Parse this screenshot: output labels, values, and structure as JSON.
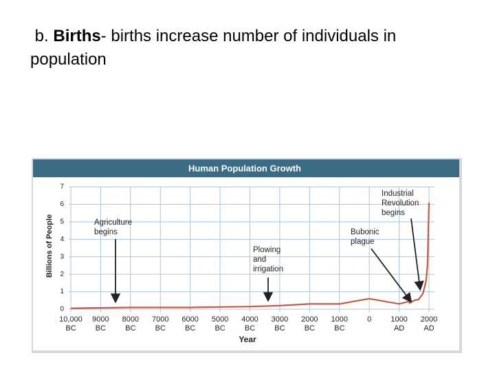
{
  "heading": {
    "prefix": "b.",
    "bold": "Births",
    "rest": "- births increase number of individuals in population"
  },
  "chart_data": {
    "type": "line",
    "title": "Human Population Growth",
    "x_label": "Year",
    "y_label": "Billions of People",
    "x": [
      -10000,
      -8000,
      -6000,
      -4000,
      -3000,
      -2000,
      -1000,
      0,
      1000,
      1340,
      1350,
      1500,
      1650,
      1800,
      1900,
      1950,
      2000
    ],
    "values": [
      0.05,
      0.1,
      0.1,
      0.15,
      0.2,
      0.3,
      0.3,
      0.6,
      0.3,
      0.45,
      0.35,
      0.5,
      0.55,
      0.9,
      1.6,
      2.5,
      6.1
    ],
    "color": "#c25a44",
    "xlim": [
      -10000,
      2000
    ],
    "xticks": [
      {
        "value": -10000,
        "label": "10,000 BC"
      },
      {
        "value": -9000,
        "label": "9000 BC"
      },
      {
        "value": -8000,
        "label": "8000 BC"
      },
      {
        "value": -7000,
        "label": "7000 BC"
      },
      {
        "value": -6000,
        "label": "6000 BC"
      },
      {
        "value": -5000,
        "label": "5000 BC"
      },
      {
        "value": -4000,
        "label": "4000 BC"
      },
      {
        "value": -3000,
        "label": "3000 BC"
      },
      {
        "value": -2000,
        "label": "2000 BC"
      },
      {
        "value": -1000,
        "label": "1000 BC"
      },
      0,
      {
        "value": 1000,
        "label": "1000 AD"
      },
      {
        "value": 2000,
        "label": "2000 AD"
      }
    ],
    "ylim": [
      0,
      7
    ],
    "yticks": [
      0,
      1,
      2,
      3,
      4,
      5,
      6,
      7
    ],
    "grid": true,
    "annotations": [
      "Agriculture begins",
      "Plowing and irrigation",
      "Bubonic plague",
      "Industrial Revolution begins"
    ]
  }
}
